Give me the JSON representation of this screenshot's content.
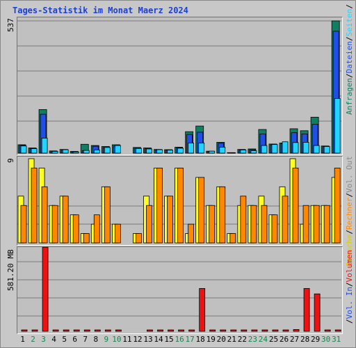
{
  "title": "Tages-Statistik im Monat Maerz 2024",
  "colors": {
    "anfragen": "#107e62",
    "dateien": "#1f4fe6",
    "seiten": "#22d4ff",
    "besuche": "#ffff22",
    "rechner": "#ff8800",
    "volumen": "#ee1111",
    "weekday": "#000000",
    "weekend": "#11884e"
  },
  "legend": {
    "top": [
      {
        "label": "Anfragen",
        "color": "#107e62"
      },
      {
        "label": "/",
        "color": "#000000"
      },
      {
        "label": "Dateien",
        "color": "#1f4fe6"
      },
      {
        "label": "/",
        "color": "#000000"
      },
      {
        "label": "Seiten",
        "color": "#22d4ff"
      },
      {
        "label": "/",
        "color": "#000000"
      }
    ],
    "middle": [
      {
        "label": "Besuche",
        "color": "#ddcc00"
      },
      {
        "label": "/",
        "color": "#000000"
      },
      {
        "label": "Rechner",
        "color": "#ff8800"
      },
      {
        "label": "/",
        "color": "#000000"
      },
      {
        "label": "Vol. Out",
        "color": "#888888"
      }
    ],
    "bottom": [
      {
        "label": "/",
        "color": "#000000"
      },
      {
        "label": "Vol. In",
        "color": "#1f4fe6"
      },
      {
        "label": "/",
        "color": "#000000"
      },
      {
        "label": "Volumen",
        "color": "#ee1111"
      }
    ]
  },
  "chart_data": [
    {
      "type": "bar",
      "panel": "requests",
      "ymax_label": "537",
      "ylim": [
        0,
        537
      ],
      "categories": [
        "1",
        "2",
        "3",
        "4",
        "5",
        "6",
        "7",
        "8",
        "9",
        "10",
        "11",
        "12",
        "13",
        "14",
        "15",
        "16",
        "17",
        "18",
        "19",
        "20",
        "21",
        "22",
        "23",
        "24",
        "25",
        "26",
        "27",
        "28",
        "29",
        "30",
        "31"
      ],
      "series": [
        {
          "name": "Anfragen",
          "values": [
            34,
            21,
            177,
            9,
            15,
            7,
            36,
            31,
            27,
            34,
            0,
            23,
            21,
            15,
            14,
            24,
            87,
            110,
            8,
            44,
            2,
            15,
            17,
            96,
            37,
            41,
            99,
            91,
            146,
            29,
            537
          ]
        },
        {
          "name": "Dateien",
          "values": [
            32,
            19,
            158,
            8,
            12,
            6,
            10,
            28,
            23,
            30,
            0,
            20,
            18,
            12,
            12,
            22,
            76,
            85,
            7,
            40,
            1,
            12,
            14,
            78,
            34,
            38,
            83,
            78,
            117,
            27,
            495
          ]
        },
        {
          "name": "Seiten",
          "values": [
            29,
            18,
            61,
            7,
            14,
            5,
            11,
            13,
            23,
            31,
            0,
            19,
            17,
            14,
            12,
            20,
            41,
            41,
            8,
            24,
            1,
            13,
            10,
            31,
            35,
            46,
            43,
            44,
            31,
            27,
            222
          ]
        }
      ]
    },
    {
      "type": "bar",
      "panel": "visits",
      "ymax_label": "9",
      "ylim": [
        0,
        9
      ],
      "categories": [
        "1",
        "2",
        "3",
        "4",
        "5",
        "6",
        "7",
        "8",
        "9",
        "10",
        "11",
        "12",
        "13",
        "14",
        "15",
        "16",
        "17",
        "18",
        "19",
        "20",
        "21",
        "22",
        "23",
        "24",
        "25",
        "26",
        "27",
        "28",
        "29",
        "30",
        "31"
      ],
      "series": [
        {
          "name": "Besuche",
          "values": [
            5,
            9,
            8,
            4,
            5,
            3,
            1,
            2,
            6,
            2,
            0,
            1,
            5,
            8,
            5,
            8,
            1,
            7,
            4,
            6,
            1,
            4,
            4,
            5,
            3,
            6,
            9,
            2,
            4,
            4,
            7
          ]
        },
        {
          "name": "Rechner",
          "values": [
            4,
            8,
            6,
            4,
            5,
            3,
            1,
            3,
            6,
            2,
            0,
            1,
            4,
            8,
            5,
            8,
            2,
            7,
            4,
            6,
            1,
            5,
            4,
            4,
            3,
            5,
            8,
            4,
            4,
            4,
            8
          ]
        }
      ]
    },
    {
      "type": "bar",
      "panel": "volume",
      "ymax_label": "581.20 MB",
      "ylim": [
        0,
        700
      ],
      "categories": [
        "1",
        "2",
        "3",
        "4",
        "5",
        "6",
        "7",
        "8",
        "9",
        "10",
        "11",
        "12",
        "13",
        "14",
        "15",
        "16",
        "17",
        "18",
        "19",
        "20",
        "21",
        "22",
        "23",
        "24",
        "25",
        "26",
        "27",
        "28",
        "29",
        "30",
        "31"
      ],
      "series": [
        {
          "name": "Volumen",
          "values": [
            5,
            5,
            699,
            5,
            5,
            5,
            5,
            5,
            5,
            5,
            0,
            0,
            5,
            5,
            5,
            5,
            5,
            356,
            5,
            5,
            5,
            5,
            5,
            5,
            5,
            5,
            15,
            356,
            311,
            5,
            5
          ]
        }
      ]
    }
  ],
  "day_labels": [
    {
      "label": "1",
      "weekend": false
    },
    {
      "label": "2",
      "weekend": true
    },
    {
      "label": "3",
      "weekend": true
    },
    {
      "label": "4",
      "weekend": false
    },
    {
      "label": "5",
      "weekend": false
    },
    {
      "label": "6",
      "weekend": false
    },
    {
      "label": "7",
      "weekend": false
    },
    {
      "label": "8",
      "weekend": false
    },
    {
      "label": "9",
      "weekend": true
    },
    {
      "label": "10",
      "weekend": true
    },
    {
      "label": "11",
      "weekend": false
    },
    {
      "label": "12",
      "weekend": false
    },
    {
      "label": "13",
      "weekend": false
    },
    {
      "label": "14",
      "weekend": false
    },
    {
      "label": "15",
      "weekend": false
    },
    {
      "label": "16",
      "weekend": true
    },
    {
      "label": "17",
      "weekend": true
    },
    {
      "label": "18",
      "weekend": false
    },
    {
      "label": "19",
      "weekend": false
    },
    {
      "label": "20",
      "weekend": false
    },
    {
      "label": "21",
      "weekend": false
    },
    {
      "label": "22",
      "weekend": false
    },
    {
      "label": "23",
      "weekend": true
    },
    {
      "label": "24",
      "weekend": true
    },
    {
      "label": "25",
      "weekend": false
    },
    {
      "label": "26",
      "weekend": false
    },
    {
      "label": "27",
      "weekend": false
    },
    {
      "label": "28",
      "weekend": false
    },
    {
      "label": "29",
      "weekend": false
    },
    {
      "label": "30",
      "weekend": true
    },
    {
      "label": "31",
      "weekend": true
    }
  ]
}
